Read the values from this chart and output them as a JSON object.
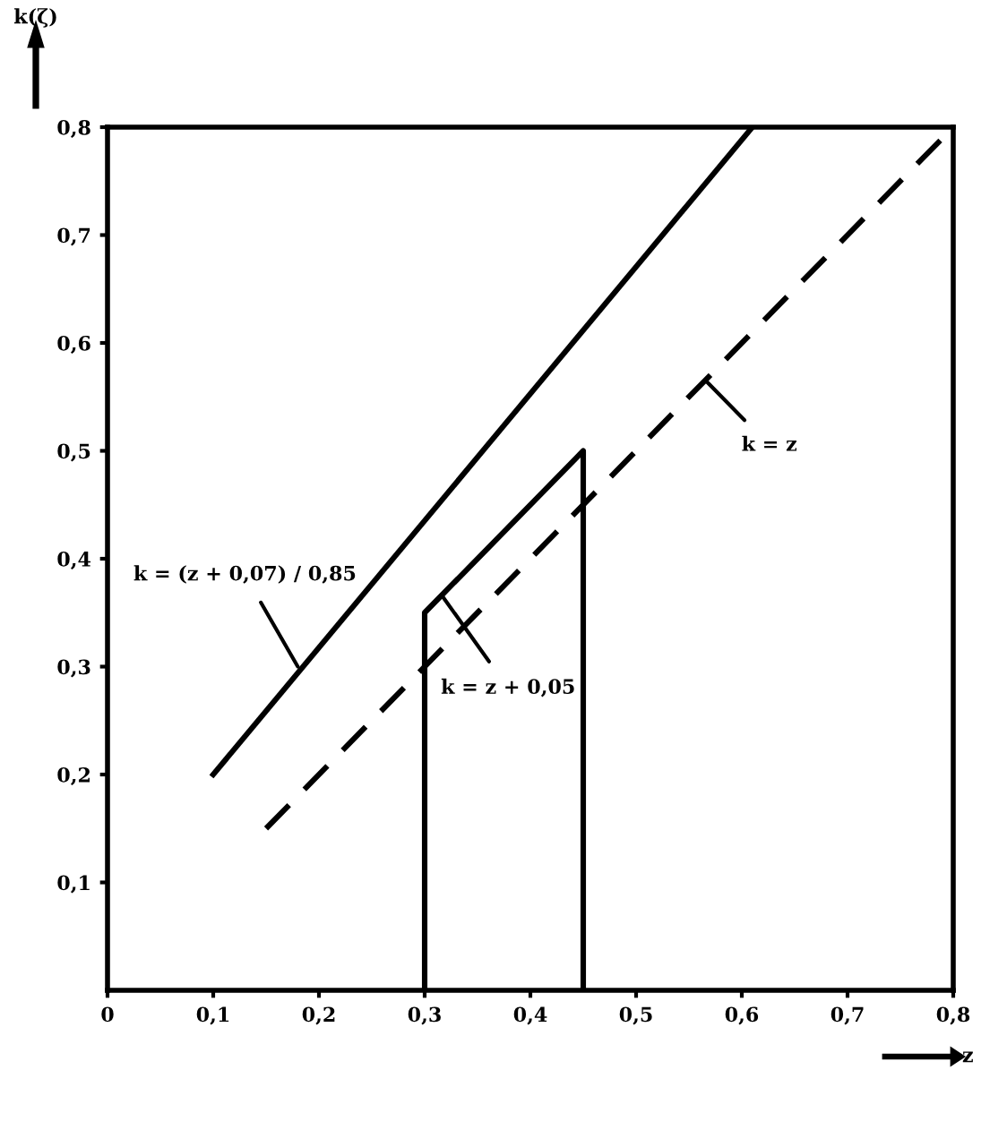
{
  "chart_data": {
    "type": "line",
    "xlabel": "z",
    "ylabel": "k(ζ)",
    "series": [
      {
        "x": [
          0.1,
          0.61
        ],
        "values": [
          0.2,
          0.8
        ],
        "color": "#000000",
        "line_style": "solid"
      },
      {
        "x": [
          0.15,
          0.8
        ],
        "values": [
          0.15,
          0.8
        ],
        "color": "#000000",
        "line_style": "dashed"
      },
      {
        "x": [
          0.3,
          0.3,
          0.45,
          0.45
        ],
        "values": [
          0,
          0.35,
          0.5,
          0
        ],
        "color": "#000000",
        "line_style": "solid"
      }
    ],
    "annotations": [
      {
        "text": "k = (z + 0,07) / 0,85",
        "x": 0.18,
        "y": 0.3
      },
      {
        "text": "k = z + 0,05",
        "x": 0.317,
        "y": 0.365
      },
      {
        "text": "k = z",
        "x": 0.566,
        "y": 0.565
      }
    ],
    "xlim": [
      0,
      0.8
    ],
    "ylim": [
      0,
      0.8
    ],
    "xticks": [
      {
        "value": 0,
        "label": "0"
      },
      {
        "value": 0.1,
        "label": "0,1"
      },
      {
        "value": 0.2,
        "label": "0,2"
      },
      {
        "value": 0.3,
        "label": "0,3"
      },
      {
        "value": 0.4,
        "label": "0,4"
      },
      {
        "value": 0.5,
        "label": "0,5"
      },
      {
        "value": 0.6,
        "label": "0,6"
      },
      {
        "value": 0.7,
        "label": "0,7"
      },
      {
        "value": 0.8,
        "label": "0,8"
      }
    ],
    "yticks": [
      {
        "value": 0.1,
        "label": "0,1"
      },
      {
        "value": 0.2,
        "label": "0,2"
      },
      {
        "value": 0.3,
        "label": "0,3"
      },
      {
        "value": 0.4,
        "label": "0,4"
      },
      {
        "value": 0.5,
        "label": "0,5"
      },
      {
        "value": 0.6,
        "label": "0,6"
      },
      {
        "value": 0.7,
        "label": "0,7"
      },
      {
        "value": 0.8,
        "label": "0,8"
      }
    ],
    "grid": false,
    "legend": false,
    "marker": "none"
  }
}
